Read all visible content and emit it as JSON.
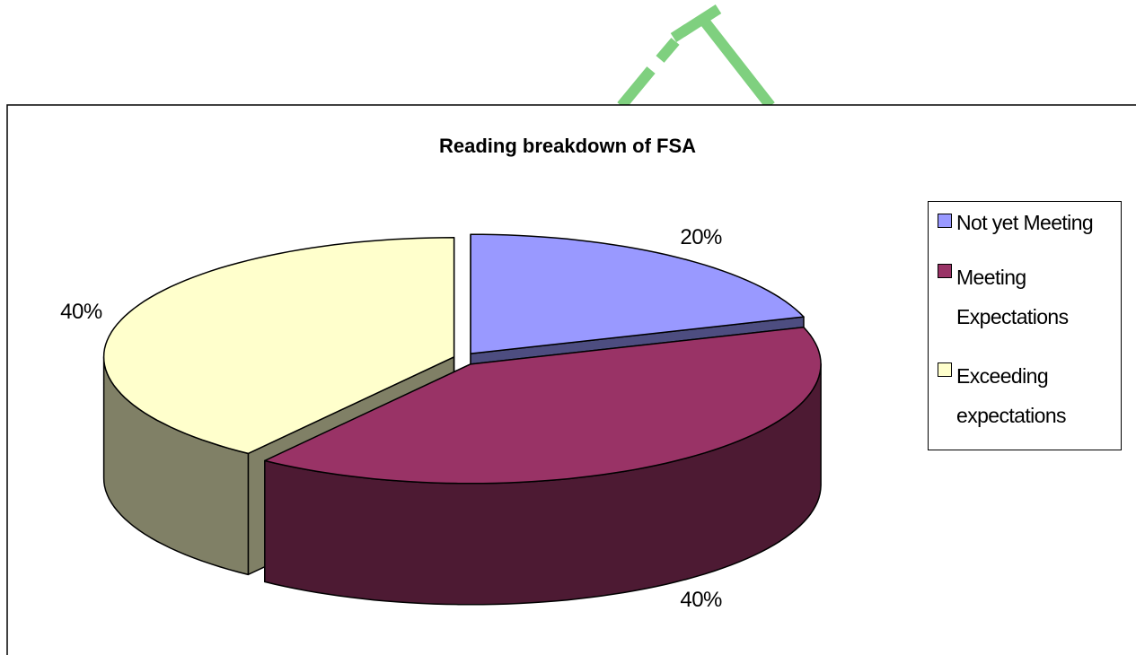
{
  "chart_data": {
    "type": "pie",
    "title": "Reading breakdown of FSA",
    "categories": [
      "Not yet Meeting",
      "Meeting Expectations",
      "Exceeding expectations"
    ],
    "values": [
      20,
      40,
      40
    ],
    "value_labels": [
      "20%",
      "40%",
      "40%"
    ],
    "colors": [
      "#9999ff",
      "#993366",
      "#ffffcc"
    ],
    "side_colors": [
      "#4d4d80",
      "#4d1a33",
      "#808066"
    ],
    "legend": "right"
  }
}
